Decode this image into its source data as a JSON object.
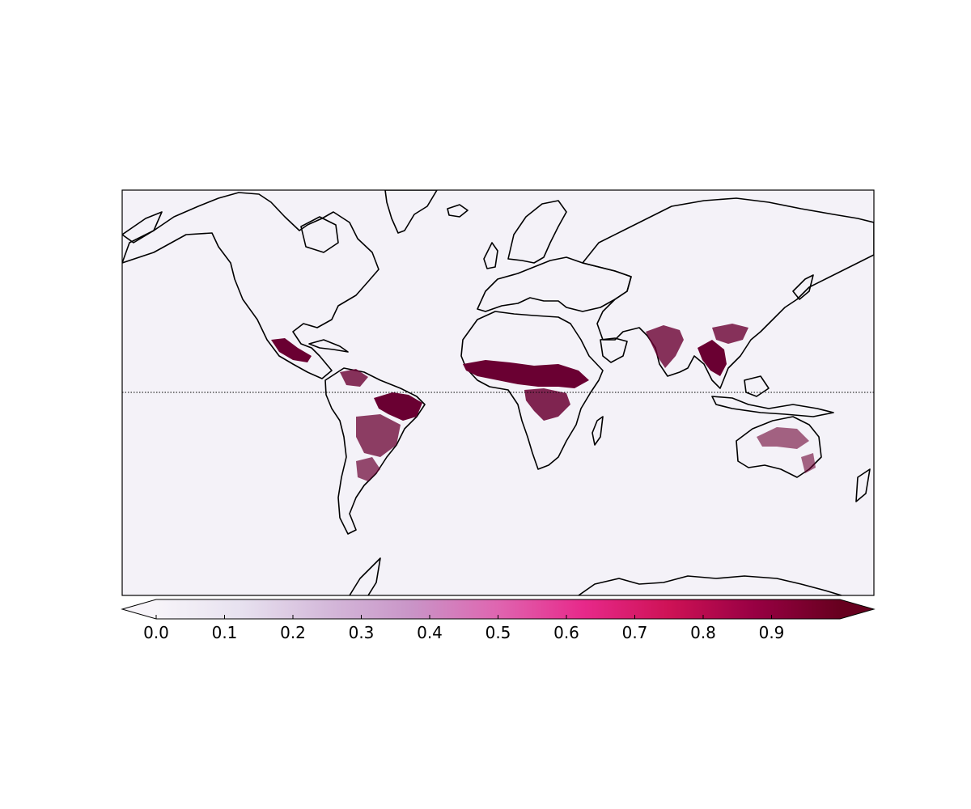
{
  "map": {
    "projection": "cylindrical",
    "equator_line": "dotted",
    "coastlines": "black",
    "ocean_fill": "#f4f2f8",
    "land_fill": "#f4f2f8",
    "highlight_color": "#6a0032",
    "regions": [
      {
        "name": "Sahel / Central Africa",
        "value": 0.95
      },
      {
        "name": "Central Africa (south of equator)",
        "value": 0.9
      },
      {
        "name": "Mainland Southeast Asia",
        "value": 0.95
      },
      {
        "name": "India",
        "value": 0.9
      },
      {
        "name": "Southern China",
        "value": 0.9
      },
      {
        "name": "Northeastern Brazil",
        "value": 0.95
      },
      {
        "name": "Central South America",
        "value": 0.9
      },
      {
        "name": "Northern South America",
        "value": 0.9
      },
      {
        "name": "Mexico / Central America",
        "value": 0.9
      },
      {
        "name": "Northern Australia",
        "value": 0.85
      },
      {
        "name": "Southeastern South America",
        "value": 0.85
      }
    ]
  },
  "colorbar": {
    "cmap": "PuRd",
    "min": 0.0,
    "max": 1.0,
    "extend": "both",
    "colors": [
      "#f7f4f9",
      "#e7e1ef",
      "#d4b9da",
      "#c994c7",
      "#df65b0",
      "#e7298a",
      "#ce1256",
      "#980043",
      "#67001f"
    ],
    "ticks": [
      {
        "label": "0.0",
        "value": 0.0
      },
      {
        "label": "0.1",
        "value": 0.1
      },
      {
        "label": "0.2",
        "value": 0.2
      },
      {
        "label": "0.3",
        "value": 0.3
      },
      {
        "label": "0.4",
        "value": 0.4
      },
      {
        "label": "0.5",
        "value": 0.5
      },
      {
        "label": "0.6",
        "value": 0.6
      },
      {
        "label": "0.7",
        "value": 0.7
      },
      {
        "label": "0.8",
        "value": 0.8
      },
      {
        "label": "0.9",
        "value": 0.9
      }
    ]
  }
}
